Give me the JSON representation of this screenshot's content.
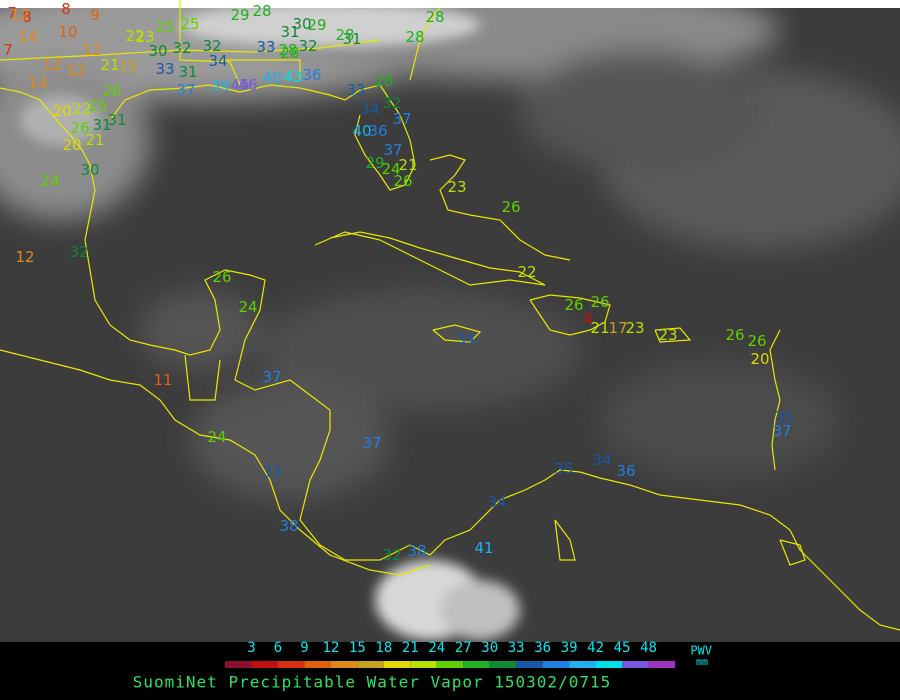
{
  "map": {
    "title": "SuomiNet Precipitable Water Vapor 150302/0715",
    "legend": {
      "unit_top": "PWV",
      "unit_bottom": "mm",
      "ticks": [
        3,
        6,
        9,
        12,
        15,
        18,
        21,
        24,
        27,
        30,
        33,
        36,
        39,
        42,
        45,
        48
      ],
      "colors": [
        "#8c1030",
        "#c01010",
        "#d83010",
        "#e06010",
        "#e08818",
        "#c8a020",
        "#e0d800",
        "#b8e000",
        "#60d000",
        "#20b020",
        "#108838",
        "#1858a8",
        "#2080e0",
        "#20b0f0",
        "#00e0e8",
        "#7858e0",
        "#a030c0"
      ]
    },
    "stations": [
      7,
      8,
      8,
      9,
      7,
      14,
      10,
      12,
      12,
      12,
      14,
      21,
      15,
      26,
      12,
      22,
      23,
      25,
      25,
      29,
      28,
      31,
      30,
      29,
      28,
      31,
      28,
      28,
      28,
      30,
      32,
      32,
      33,
      28,
      32,
      33,
      31,
      34,
      37,
      39,
      45,
      46,
      40,
      43,
      36,
      28,
      33,
      34,
      32,
      37,
      40,
      36,
      37,
      29,
      24,
      21,
      26,
      23,
      26,
      22,
      26,
      24,
      26,
      26,
      4,
      21,
      17,
      23,
      23,
      26,
      26,
      20,
      35,
      37,
      34,
      11,
      37,
      24,
      37,
      33,
      35,
      34,
      36,
      34,
      38,
      32,
      38,
      41,
      24,
      30,
      32,
      12,
      20,
      22,
      25,
      26,
      31,
      31,
      20,
      21
    ]
  }
}
